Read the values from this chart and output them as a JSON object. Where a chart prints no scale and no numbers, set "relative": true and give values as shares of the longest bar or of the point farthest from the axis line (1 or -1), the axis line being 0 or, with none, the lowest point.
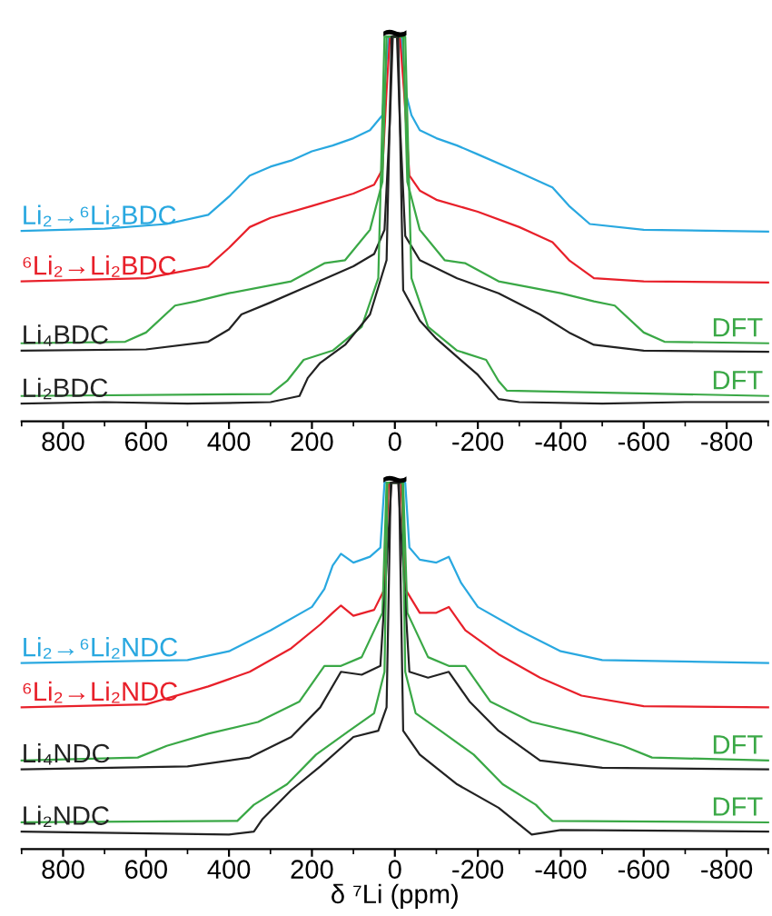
{
  "chart_data": [
    {
      "type": "line",
      "relative": true,
      "xlim": [
        900,
        -900
      ],
      "xticks": [
        800,
        600,
        400,
        200,
        0,
        -200,
        -400,
        -600,
        -800
      ],
      "tick_labels": "x",
      "grid": false,
      "legend": false,
      "annotations": [
        "~"
      ],
      "series": [
        {
          "name": "Li₂→⁶Li₂BDC",
          "color": "#29a8e0",
          "x": [
            900,
            700,
            550,
            450,
            400,
            350,
            300,
            250,
            200,
            150,
            100,
            60,
            30,
            20,
            15,
            -15,
            -25,
            -40,
            -60,
            -100,
            -150,
            -200,
            -300,
            -380,
            -420,
            -470,
            -600,
            -900
          ],
          "values": [
            0.495,
            0.501,
            0.513,
            0.537,
            0.584,
            0.639,
            0.662,
            0.678,
            0.702,
            0.717,
            0.736,
            0.757,
            0.796,
            0.937,
            1.0,
            1.0,
            0.859,
            0.796,
            0.757,
            0.736,
            0.717,
            0.694,
            0.647,
            0.608,
            0.56,
            0.513,
            0.498,
            0.493
          ]
        },
        {
          "name": "⁶Li₂→Li₂BDC",
          "color": "#e8202a",
          "x": [
            900,
            600,
            450,
            400,
            350,
            300,
            200,
            100,
            50,
            30,
            20,
            12,
            -12,
            -22,
            -35,
            -60,
            -100,
            -200,
            -300,
            -380,
            -420,
            -480,
            -600,
            -900
          ],
          "values": [
            0.364,
            0.372,
            0.403,
            0.451,
            0.505,
            0.529,
            0.56,
            0.592,
            0.615,
            0.655,
            0.859,
            1.0,
            1.0,
            0.859,
            0.639,
            0.6,
            0.576,
            0.545,
            0.505,
            0.466,
            0.419,
            0.372,
            0.364,
            0.361
          ]
        },
        {
          "name": "DFT",
          "color": "#3aa846",
          "x": [
            900,
            650,
            600,
            530,
            480,
            400,
            250,
            170,
            120,
            60,
            30,
            20,
            -20,
            -30,
            -60,
            -120,
            -170,
            -250,
            -400,
            -480,
            -530,
            -600,
            -650,
            -900
          ],
          "values": [
            0.203,
            0.207,
            0.231,
            0.301,
            0.312,
            0.333,
            0.364,
            0.411,
            0.419,
            0.498,
            0.623,
            1.0,
            1.0,
            0.623,
            0.498,
            0.419,
            0.411,
            0.364,
            0.333,
            0.312,
            0.301,
            0.231,
            0.207,
            0.203
          ]
        },
        {
          "name": "Li₄BDC",
          "color": "#222222",
          "x": [
            900,
            600,
            450,
            400,
            370,
            300,
            200,
            100,
            50,
            25,
            12,
            5,
            -5,
            -12,
            -25,
            -60,
            -150,
            -250,
            -350,
            -420,
            -480,
            -600,
            -900
          ],
          "values": [
            0.184,
            0.187,
            0.207,
            0.239,
            0.278,
            0.309,
            0.356,
            0.403,
            0.435,
            0.498,
            0.78,
            1.0,
            1.0,
            0.78,
            0.482,
            0.419,
            0.372,
            0.333,
            0.278,
            0.231,
            0.199,
            0.184,
            0.181
          ]
        },
        {
          "name": "DFT",
          "color": "#3aa846",
          "x": [
            900,
            300,
            260,
            220,
            150,
            80,
            40,
            25,
            -25,
            -40,
            -80,
            -150,
            -220,
            -250,
            -270,
            -900
          ],
          "values": [
            0.066,
            0.071,
            0.105,
            0.16,
            0.184,
            0.246,
            0.372,
            1.0,
            1.0,
            0.372,
            0.246,
            0.184,
            0.16,
            0.105,
            0.08,
            0.066
          ]
        },
        {
          "name": "Li₂BDC",
          "color": "#222222",
          "x": [
            900,
            700,
            500,
            300,
            230,
            210,
            180,
            120,
            60,
            20,
            8,
            -8,
            -20,
            -60,
            -100,
            -150,
            -200,
            -250,
            -300,
            -500,
            -700,
            -900
          ],
          "values": [
            0.046,
            0.05,
            0.046,
            0.05,
            0.066,
            0.113,
            0.152,
            0.199,
            0.278,
            0.419,
            1.0,
            1.0,
            0.341,
            0.262,
            0.215,
            0.168,
            0.121,
            0.058,
            0.05,
            0.046,
            0.05,
            0.05
          ]
        }
      ]
    },
    {
      "type": "line",
      "relative": true,
      "xlim": [
        900,
        -900
      ],
      "xticks": [
        800,
        600,
        400,
        200,
        0,
        -200,
        -400,
        -600,
        -800
      ],
      "tick_labels": "x",
      "grid": false,
      "legend": false,
      "xlabel": "δ ⁷Li (ppm)",
      "annotations": [
        "~"
      ],
      "series": [
        {
          "name": "Li₂→⁶Li₂NDC",
          "color": "#29a8e0",
          "x": [
            900,
            500,
            400,
            300,
            200,
            170,
            150,
            130,
            100,
            60,
            35,
            25,
            -25,
            -35,
            -60,
            -100,
            -130,
            -160,
            -200,
            -300,
            -400,
            -500,
            -900
          ],
          "values": [
            0.508,
            0.516,
            0.54,
            0.597,
            0.661,
            0.71,
            0.774,
            0.806,
            0.782,
            0.798,
            0.823,
            1.0,
            1.0,
            0.823,
            0.79,
            0.782,
            0.798,
            0.726,
            0.661,
            0.597,
            0.54,
            0.516,
            0.508
          ]
        },
        {
          "name": "⁶Li₂→Li₂NDC",
          "color": "#e8202a",
          "x": [
            900,
            600,
            450,
            350,
            250,
            180,
            150,
            130,
            100,
            50,
            25,
            15,
            -15,
            -25,
            -60,
            -100,
            -130,
            -170,
            -250,
            -350,
            -450,
            -600,
            -900
          ],
          "values": [
            0.387,
            0.395,
            0.444,
            0.484,
            0.548,
            0.613,
            0.645,
            0.665,
            0.637,
            0.653,
            0.71,
            1.0,
            1.0,
            0.71,
            0.645,
            0.645,
            0.661,
            0.597,
            0.532,
            0.468,
            0.419,
            0.39,
            0.387
          ]
        },
        {
          "name": "DFT",
          "color": "#3aa846",
          "x": [
            900,
            620,
            550,
            450,
            330,
            230,
            170,
            130,
            80,
            30,
            20,
            -20,
            -30,
            -80,
            -130,
            -170,
            -230,
            -330,
            -450,
            -550,
            -620,
            -900
          ],
          "values": [
            0.242,
            0.25,
            0.282,
            0.315,
            0.347,
            0.403,
            0.5,
            0.5,
            0.524,
            0.645,
            1.0,
            1.0,
            0.645,
            0.524,
            0.5,
            0.5,
            0.403,
            0.347,
            0.315,
            0.282,
            0.25,
            0.242
          ]
        },
        {
          "name": "Li₄NDC",
          "color": "#222222",
          "x": [
            900,
            500,
            350,
            250,
            180,
            130,
            80,
            35,
            20,
            8,
            -8,
            -20,
            -35,
            -80,
            -130,
            -180,
            -250,
            -350,
            -500,
            -900
          ],
          "values": [
            0.218,
            0.226,
            0.25,
            0.306,
            0.387,
            0.484,
            0.476,
            0.5,
            0.774,
            1.0,
            1.0,
            0.774,
            0.484,
            0.468,
            0.484,
            0.403,
            0.323,
            0.242,
            0.222,
            0.218
          ]
        },
        {
          "name": "DFT",
          "color": "#3aa846",
          "x": [
            900,
            380,
            340,
            260,
            190,
            110,
            50,
            25,
            18,
            -18,
            -25,
            -50,
            -110,
            -190,
            -260,
            -340,
            -360,
            -380,
            -900
          ],
          "values": [
            0.073,
            0.077,
            0.121,
            0.177,
            0.258,
            0.323,
            0.371,
            0.484,
            1.0,
            1.0,
            0.484,
            0.371,
            0.323,
            0.258,
            0.177,
            0.121,
            0.097,
            0.077,
            0.073
          ]
        },
        {
          "name": "Li₂NDC",
          "color": "#222222",
          "x": [
            900,
            400,
            340,
            320,
            250,
            180,
            100,
            40,
            20,
            10,
            -10,
            -20,
            -60,
            -150,
            -250,
            -330,
            -400,
            -900
          ],
          "values": [
            0.048,
            0.04,
            0.048,
            0.081,
            0.161,
            0.226,
            0.306,
            0.323,
            0.387,
            1.0,
            1.0,
            0.323,
            0.258,
            0.177,
            0.113,
            0.04,
            0.052,
            0.048
          ]
        }
      ]
    }
  ]
}
